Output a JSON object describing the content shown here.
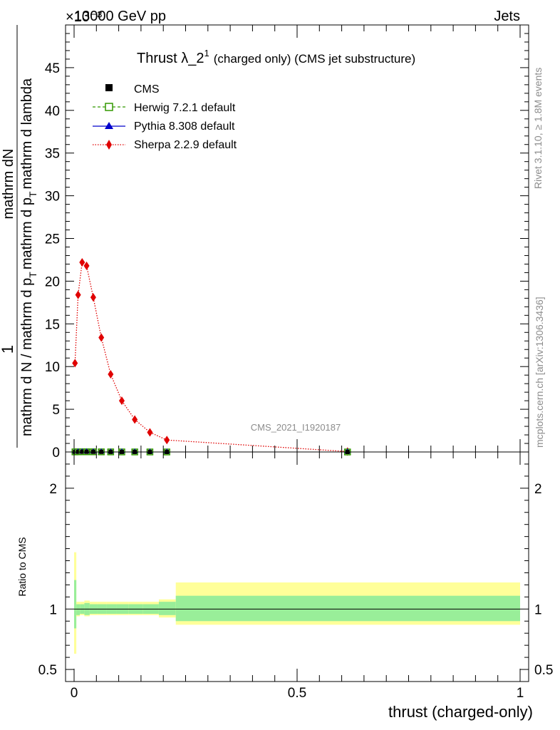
{
  "header": {
    "energy_label": "13000 GeV pp",
    "process_label": "Jets",
    "exponent_label": "×10⁻³"
  },
  "side_labels": {
    "rivet": "Rivet 3.1.10, ≥ 1.8M events",
    "mcplots": "mcplots.cern.ch [arXiv:1306.3436]"
  },
  "chart_data": [
    {
      "type": "line",
      "title_main": "Thrust λ_2",
      "title_sup": "1",
      "title_rest": "(charged only) (CMS jet substructure)",
      "ylabel_top": "1",
      "ylabel_bottom": "mathrm d N / mathrm d p",
      "ylabel_bottom_sub": "T",
      "ylabel_bottom_rest": "mathrm d p",
      "ylabel_bottom_rest_sub": "T",
      "ylabel_bottom_end": "mathrm d lambda",
      "ylabel_numer": "mathrm dN",
      "ylabel_full_top": "mathrm d p",
      "ylabel_full_top_sub": "T",
      "ylabel_full_top_end": "mathrm d lambda",
      "ylabel_denominator": "mathrm d N / mathrm d p",
      "analysis_id": "CMS_2021_I1920187",
      "xlim": [
        0,
        1
      ],
      "ylim": [
        0,
        50
      ],
      "yscale_note": "×10⁻³",
      "y_ticks": [
        0,
        5,
        10,
        15,
        20,
        25,
        30,
        35,
        40,
        45
      ],
      "legend": [
        {
          "name": "CMS",
          "color": "#000000",
          "marker": "square-filled"
        },
        {
          "name": "Herwig 7.2.1 default",
          "color": "#339900",
          "marker": "square-open",
          "line": "dashed"
        },
        {
          "name": "Pythia 8.308 default",
          "color": "#0000cc",
          "marker": "triangle",
          "line": "solid"
        },
        {
          "name": "Sherpa 2.2.9 default",
          "color": "#e00000",
          "marker": "diamond",
          "line": "dotted"
        }
      ],
      "series": [
        {
          "name": "Sherpa 2.2.9 default",
          "x": [
            0.002,
            0.009,
            0.018,
            0.028,
            0.043,
            0.061,
            0.082,
            0.107,
            0.136,
            0.17,
            0.208,
            0.613
          ],
          "values": [
            10.4,
            18.4,
            22.2,
            21.8,
            18.1,
            13.4,
            9.1,
            6.0,
            3.8,
            2.3,
            1.4,
            0.05
          ]
        }
      ],
      "cms_points_x": [
        0.002,
        0.009,
        0.018,
        0.028,
        0.043,
        0.061,
        0.082,
        0.107,
        0.136,
        0.17,
        0.208,
        0.613
      ],
      "cms_points_y": [
        0.01,
        0.018,
        0.022,
        0.022,
        0.018,
        0.013,
        0.009,
        0.006,
        0.004,
        0.002,
        0.001,
        5e-05
      ]
    },
    {
      "type": "area",
      "ylabel": "Ratio to CMS",
      "xlabel": "thrust (charged-only)",
      "xlim": [
        0,
        1
      ],
      "ylim": [
        0.4,
        2.3
      ],
      "x_ticks": [
        "0",
        "0.5",
        "1"
      ],
      "y_ticks": [
        "0.5",
        "1",
        "2"
      ],
      "band_edges": [
        0,
        0.005,
        0.013,
        0.023,
        0.035,
        0.052,
        0.072,
        0.095,
        0.122,
        0.154,
        0.19,
        0.228,
        1.0
      ],
      "band_inner_lo": [
        0.84,
        0.95,
        0.96,
        0.95,
        0.96,
        0.96,
        0.96,
        0.96,
        0.96,
        0.96,
        0.95,
        0.9
      ],
      "band_inner_hi": [
        1.24,
        1.04,
        1.04,
        1.05,
        1.04,
        1.04,
        1.04,
        1.04,
        1.04,
        1.04,
        1.06,
        1.11
      ],
      "band_outer_lo": [
        0.63,
        0.94,
        0.95,
        0.94,
        0.95,
        0.95,
        0.95,
        0.95,
        0.95,
        0.95,
        0.93,
        0.87
      ],
      "band_outer_hi": [
        1.47,
        1.06,
        1.06,
        1.07,
        1.06,
        1.06,
        1.06,
        1.06,
        1.06,
        1.06,
        1.08,
        1.22
      ],
      "inner_color": "#99ee99",
      "outer_color": "#ffff99"
    }
  ]
}
